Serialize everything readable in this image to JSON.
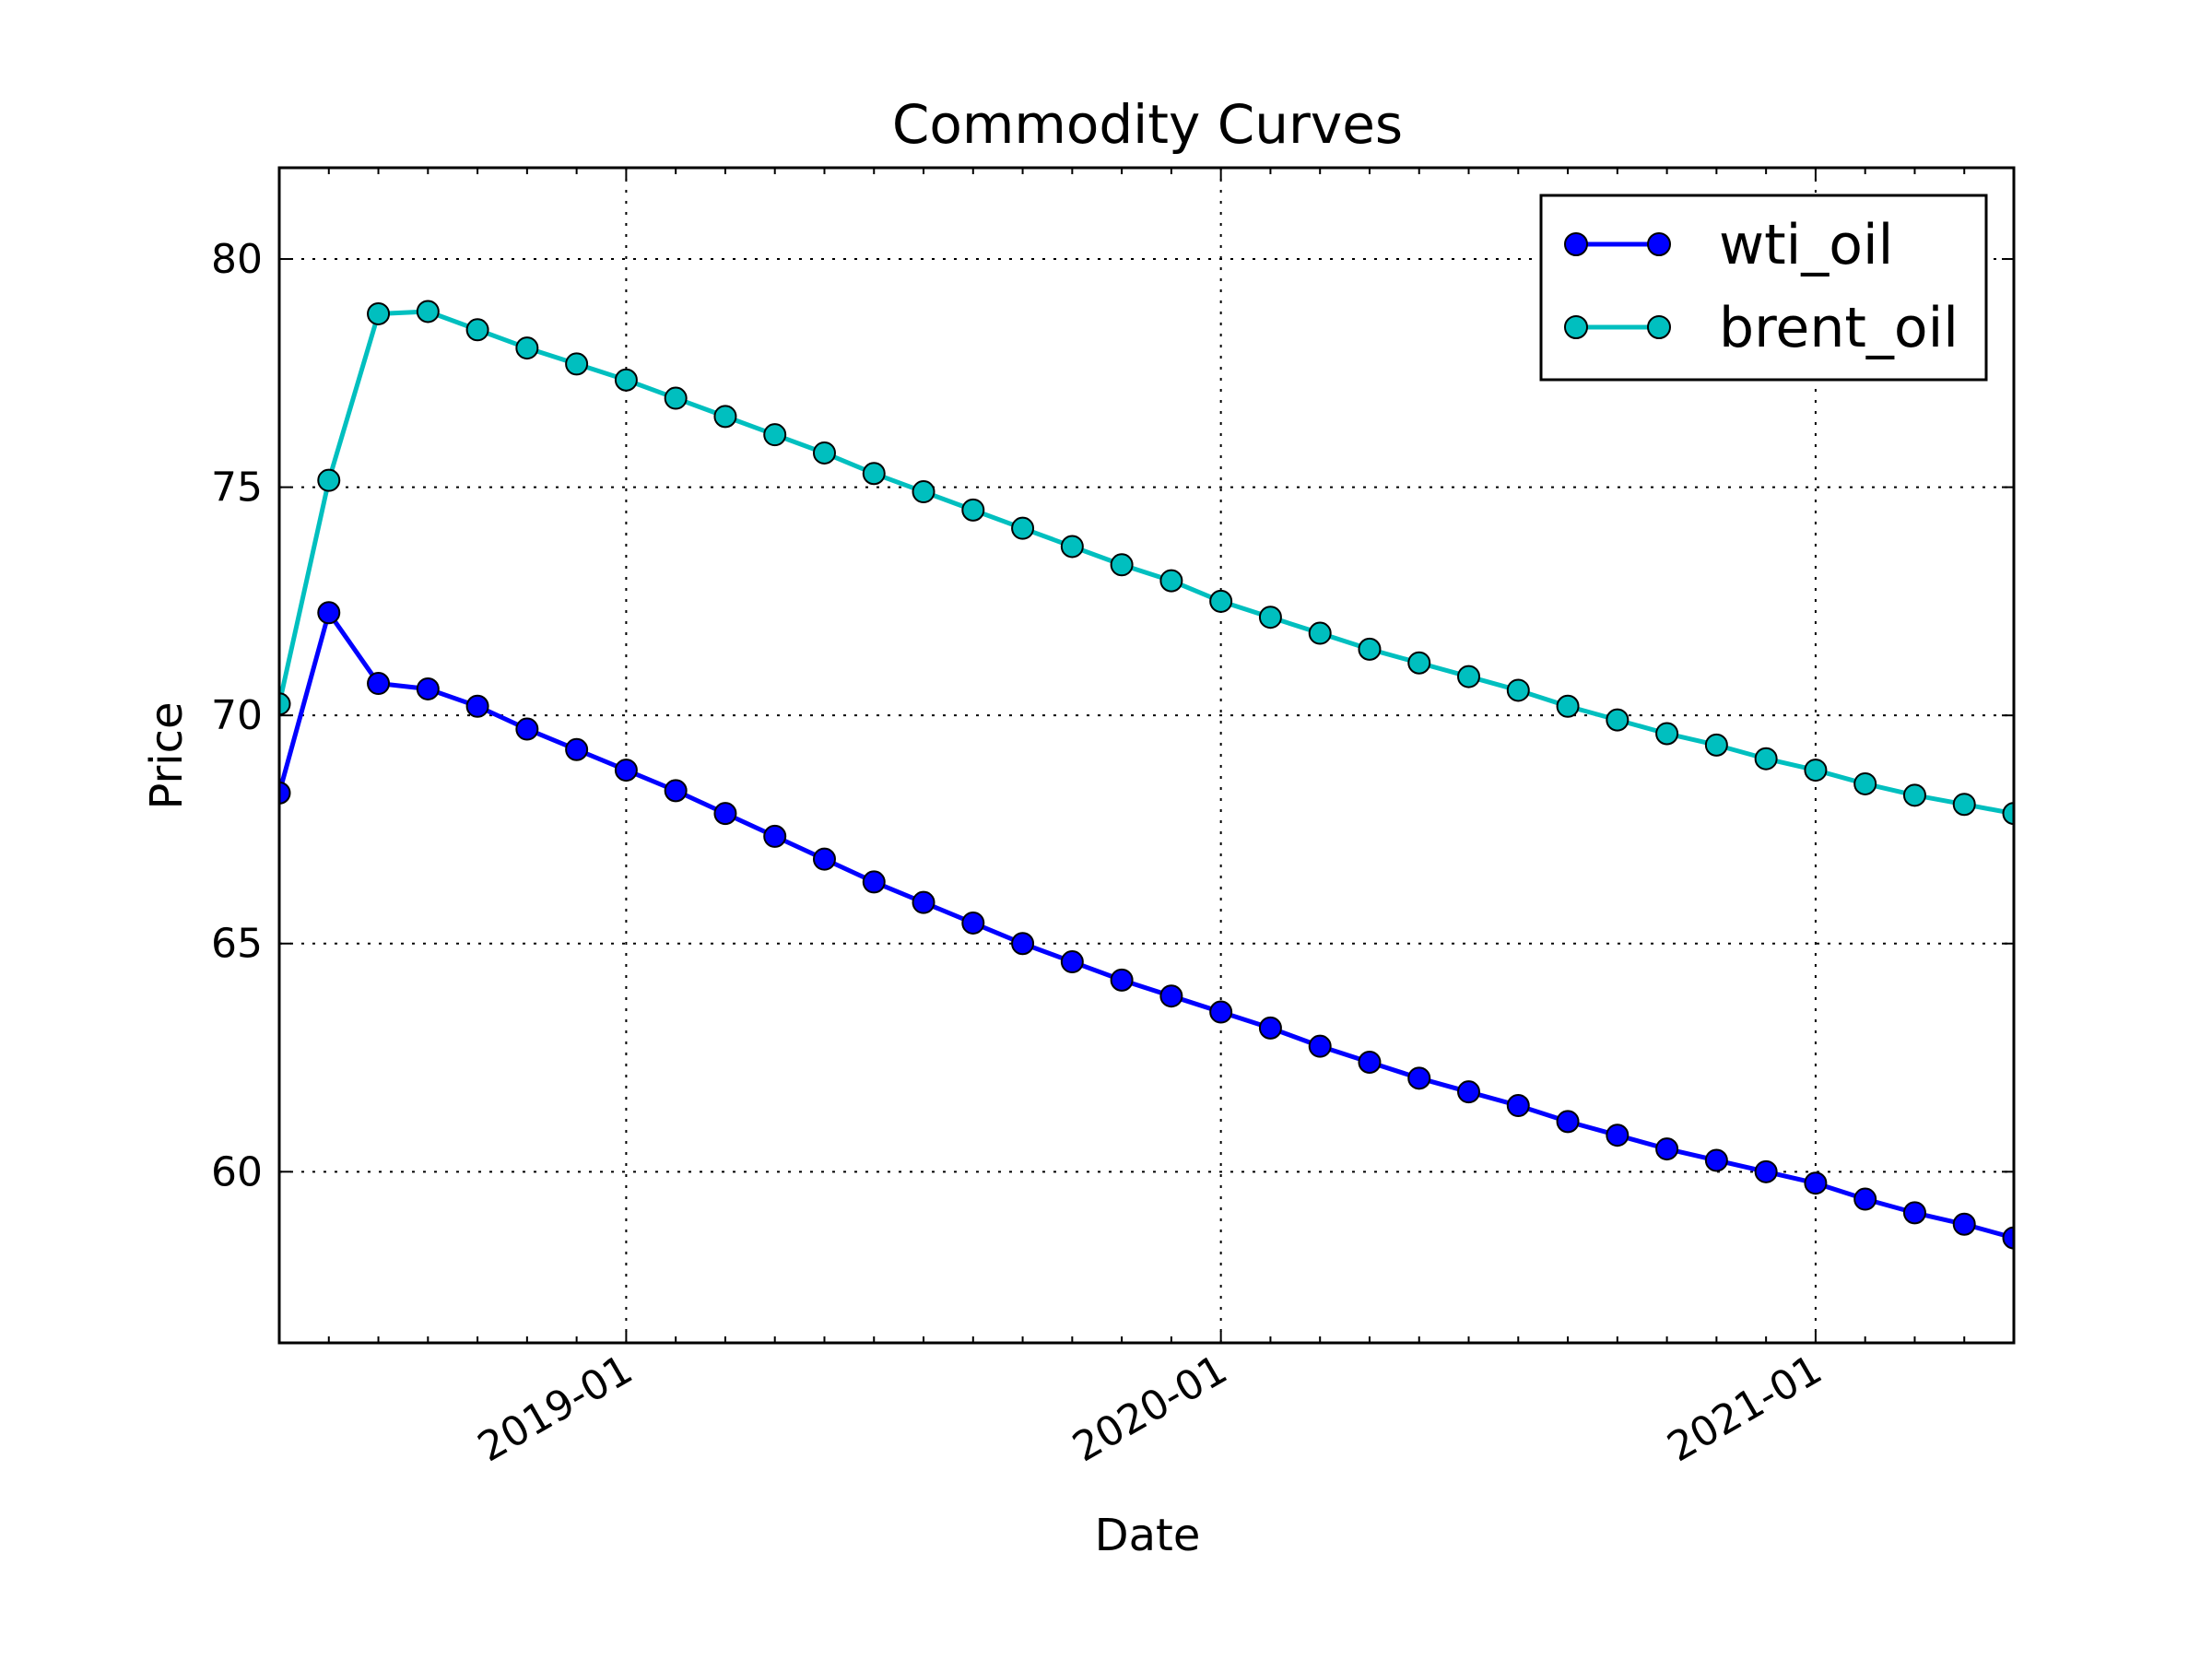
{
  "chart_data": {
    "type": "line",
    "title": "Commodity Curves",
    "xlabel": "Date",
    "ylabel": "Price",
    "x": [
      "2018-06",
      "2018-07",
      "2018-08",
      "2018-09",
      "2018-10",
      "2018-11",
      "2018-12",
      "2019-01",
      "2019-02",
      "2019-03",
      "2019-04",
      "2019-05",
      "2019-06",
      "2019-07",
      "2019-08",
      "2019-09",
      "2019-10",
      "2019-11",
      "2019-12",
      "2020-01",
      "2020-02",
      "2020-03",
      "2020-04",
      "2020-05",
      "2020-06",
      "2020-07",
      "2020-08",
      "2020-09",
      "2020-10",
      "2020-11",
      "2020-12",
      "2021-01",
      "2021-02",
      "2021-03",
      "2021-04",
      "2021-05"
    ],
    "ylim": [
      56.25,
      82.0
    ],
    "yticks": [
      60,
      65,
      70,
      75,
      80
    ],
    "xticks": [
      "2019-01",
      "2020-01",
      "2021-01"
    ],
    "grid": true,
    "legend_position": "top-right",
    "series": [
      {
        "name": "wti_oil",
        "color": "#0000ff",
        "values": [
          68.3,
          72.25,
          70.7,
          70.58,
          70.2,
          69.7,
          69.25,
          68.8,
          68.35,
          67.85,
          67.35,
          66.85,
          66.35,
          65.9,
          65.45,
          65.0,
          64.6,
          64.2,
          63.85,
          63.5,
          63.15,
          62.75,
          62.4,
          62.05,
          61.75,
          61.45,
          61.1,
          60.8,
          60.5,
          60.25,
          60.0,
          59.75,
          59.4,
          59.1,
          58.85,
          58.55
        ]
      },
      {
        "name": "brent_oil",
        "color": "#00bfbf",
        "values": [
          70.25,
          75.15,
          78.8,
          78.85,
          78.45,
          78.05,
          77.7,
          77.35,
          76.95,
          76.55,
          76.15,
          75.75,
          75.3,
          74.9,
          74.5,
          74.1,
          73.7,
          73.3,
          72.95,
          72.5,
          72.15,
          71.8,
          71.45,
          71.15,
          70.85,
          70.55,
          70.2,
          69.9,
          69.6,
          69.35,
          69.05,
          68.8,
          68.5,
          68.25,
          68.05,
          67.85
        ]
      }
    ]
  }
}
